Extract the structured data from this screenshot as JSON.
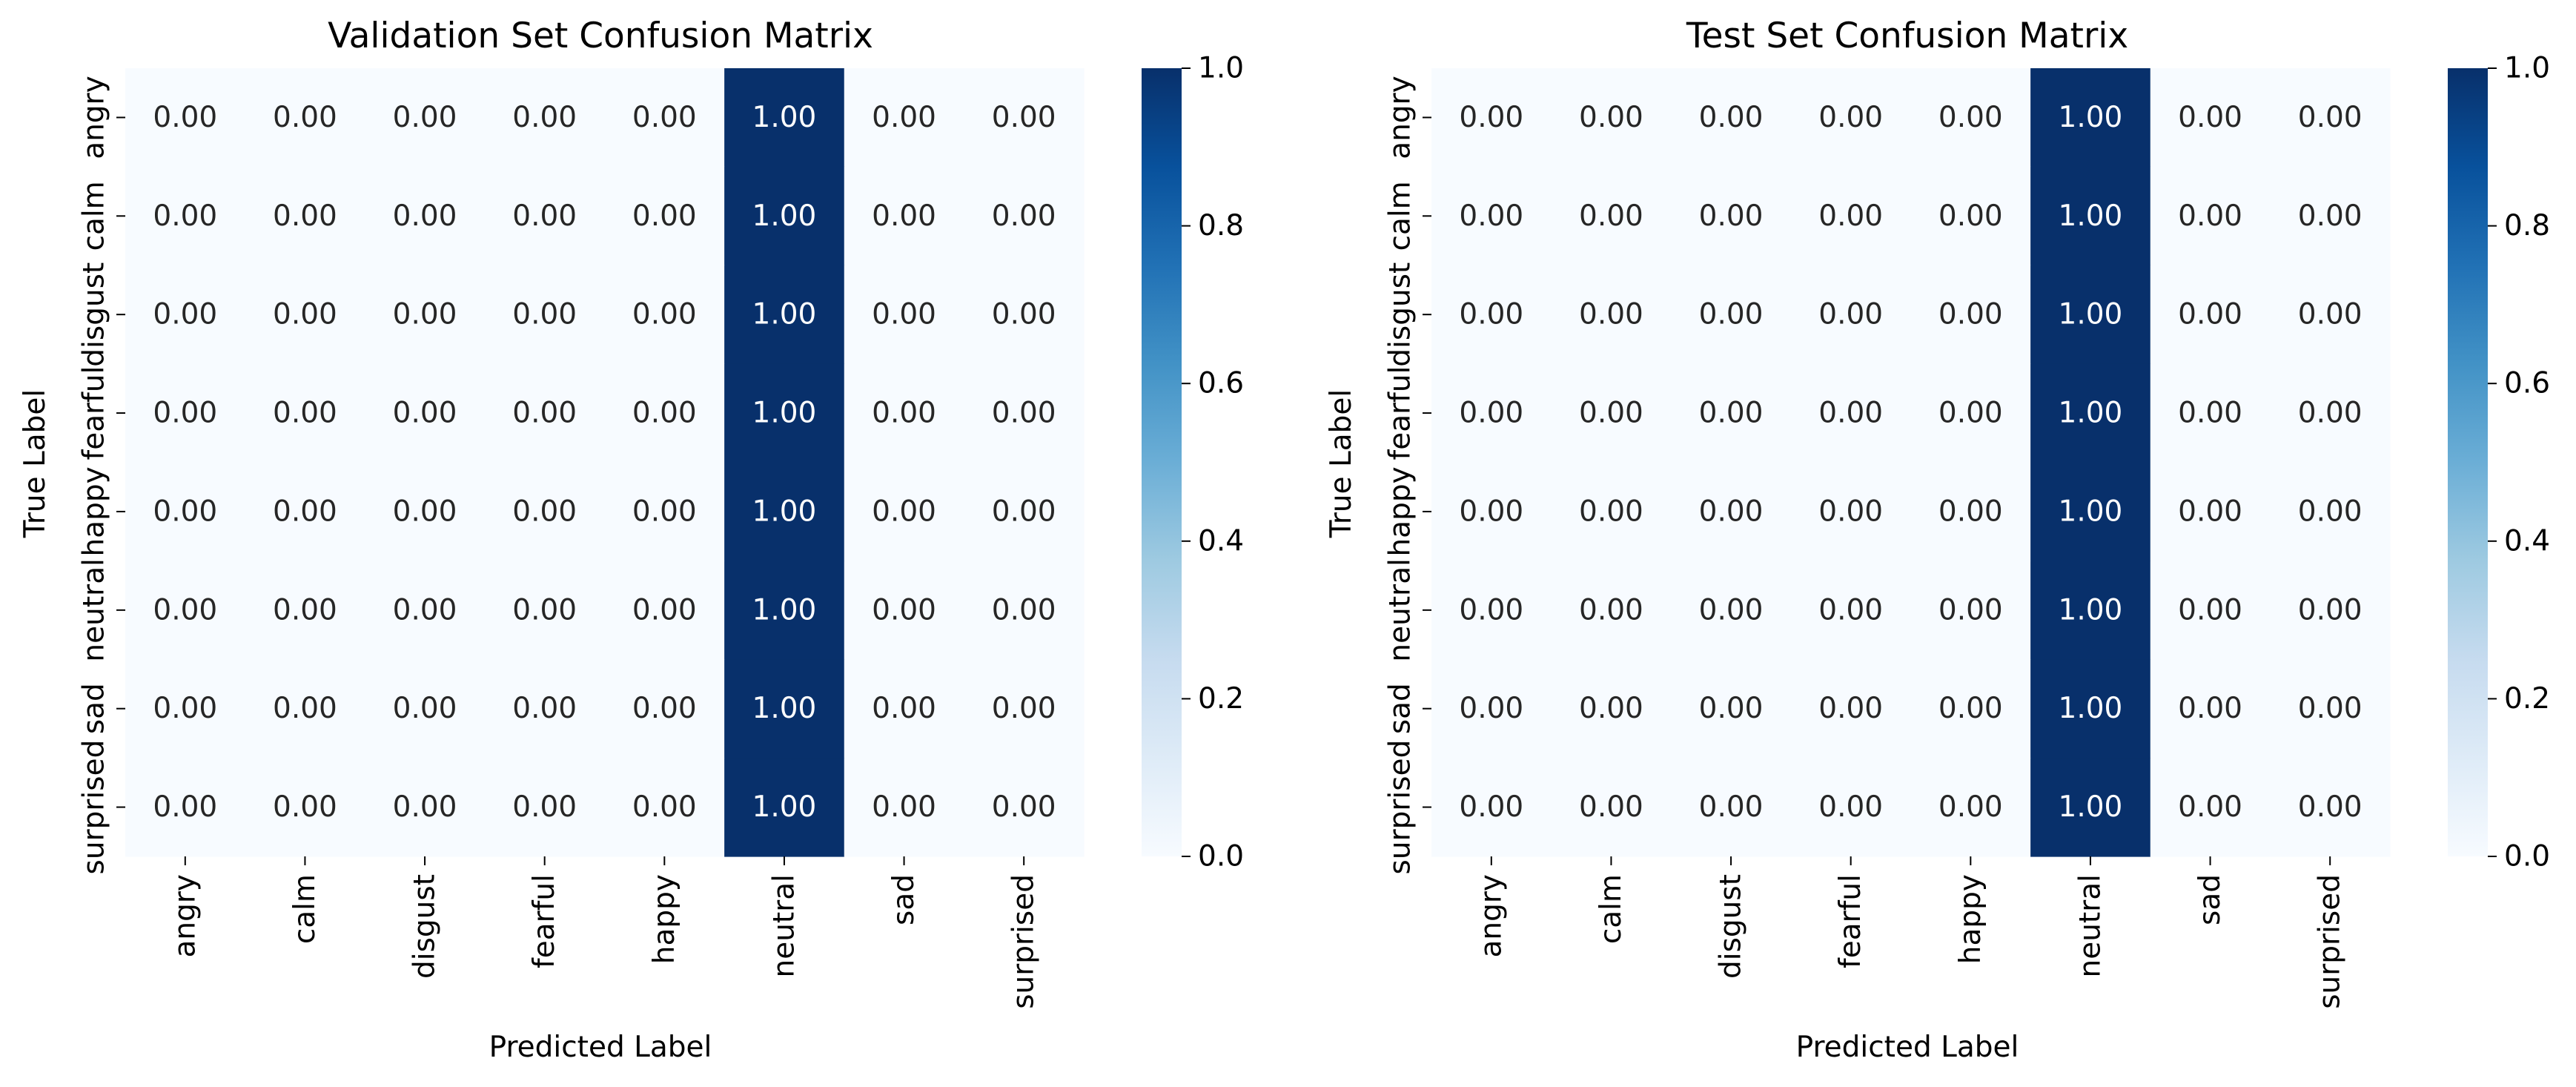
{
  "chart_data": [
    {
      "type": "heatmap",
      "title": "Validation Set Confusion Matrix",
      "xlabel": "Predicted Label",
      "ylabel": "True Label",
      "x_categories": [
        "angry",
        "calm",
        "disgust",
        "fearful",
        "happy",
        "neutral",
        "sad",
        "surprised"
      ],
      "y_categories": [
        "angry",
        "calm",
        "disgust",
        "fearful",
        "happy",
        "neutral",
        "sad",
        "surprised"
      ],
      "values": [
        [
          0,
          0,
          0,
          0,
          0,
          1,
          0,
          0
        ],
        [
          0,
          0,
          0,
          0,
          0,
          1,
          0,
          0
        ],
        [
          0,
          0,
          0,
          0,
          0,
          1,
          0,
          0
        ],
        [
          0,
          0,
          0,
          0,
          0,
          1,
          0,
          0
        ],
        [
          0,
          0,
          0,
          0,
          0,
          1,
          0,
          0
        ],
        [
          0,
          0,
          0,
          0,
          0,
          1,
          0,
          0
        ],
        [
          0,
          0,
          0,
          0,
          0,
          1,
          0,
          0
        ],
        [
          0,
          0,
          0,
          0,
          0,
          1,
          0,
          0
        ]
      ],
      "value_format": "0.00",
      "colormap": "Blues",
      "color_low": "#f7fbff",
      "color_high": "#08306b",
      "colorbar_range": [
        0,
        1
      ],
      "colorbar_ticks": [
        "0.0",
        "0.2",
        "0.4",
        "0.6",
        "0.8",
        "1.0"
      ]
    },
    {
      "type": "heatmap",
      "title": "Test Set Confusion Matrix",
      "xlabel": "Predicted Label",
      "ylabel": "True Label",
      "x_categories": [
        "angry",
        "calm",
        "disgust",
        "fearful",
        "happy",
        "neutral",
        "sad",
        "surprised"
      ],
      "y_categories": [
        "angry",
        "calm",
        "disgust",
        "fearful",
        "happy",
        "neutral",
        "sad",
        "surprised"
      ],
      "values": [
        [
          0,
          0,
          0,
          0,
          0,
          1,
          0,
          0
        ],
        [
          0,
          0,
          0,
          0,
          0,
          1,
          0,
          0
        ],
        [
          0,
          0,
          0,
          0,
          0,
          1,
          0,
          0
        ],
        [
          0,
          0,
          0,
          0,
          0,
          1,
          0,
          0
        ],
        [
          0,
          0,
          0,
          0,
          0,
          1,
          0,
          0
        ],
        [
          0,
          0,
          0,
          0,
          0,
          1,
          0,
          0
        ],
        [
          0,
          0,
          0,
          0,
          0,
          1,
          0,
          0
        ],
        [
          0,
          0,
          0,
          0,
          0,
          1,
          0,
          0
        ]
      ],
      "value_format": "0.00",
      "colormap": "Blues",
      "color_low": "#f7fbff",
      "color_high": "#08306b",
      "colorbar_range": [
        0,
        1
      ],
      "colorbar_ticks": [
        "0.0",
        "0.2",
        "0.4",
        "0.6",
        "0.8",
        "1.0"
      ]
    }
  ]
}
